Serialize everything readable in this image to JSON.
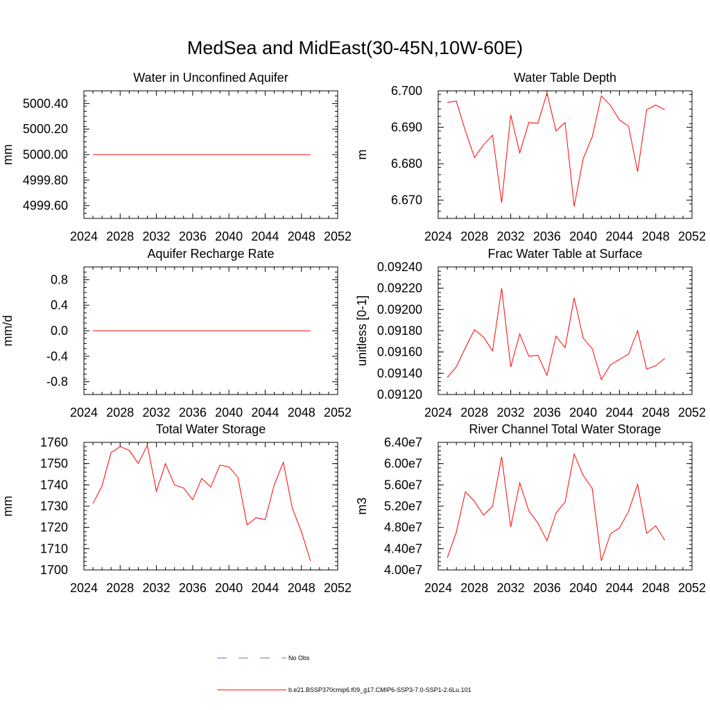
{
  "figure": {
    "title": "MedSea and MidEast(30-45N,10W-60E)",
    "series_color": "#ff0000",
    "obs_color": "#7b6fb8"
  },
  "legend": {
    "obs_label": "No Obs",
    "model_label": "b.e21.BSSP370cmip6.f09_g17.CMIP6-SSP3-7.0-SSP1-2.6Lu.101"
  },
  "chart_data": [
    {
      "type": "line",
      "title": "Water in Unconfined Aquifer",
      "ylabel": "mm",
      "xlim": [
        2024,
        2052
      ],
      "ylim": [
        4999.5,
        5000.5
      ],
      "xticks": [
        "2024",
        "2028",
        "2032",
        "2036",
        "2040",
        "2044",
        "2048",
        "2052"
      ],
      "yticks": [
        {
          "v": 4999.6,
          "label": "4999.60"
        },
        {
          "v": 4999.8,
          "label": "4999.80"
        },
        {
          "v": 5000.0,
          "label": "5000.00"
        },
        {
          "v": 5000.2,
          "label": "5000.20"
        },
        {
          "v": 5000.4,
          "label": "5000.40"
        }
      ],
      "x": [
        2025,
        2026,
        2027,
        2028,
        2029,
        2030,
        2031,
        2032,
        2033,
        2034,
        2035,
        2036,
        2037,
        2038,
        2039,
        2040,
        2041,
        2042,
        2043,
        2044,
        2045,
        2046,
        2047,
        2048,
        2049
      ],
      "y": [
        5000,
        5000,
        5000,
        5000,
        5000,
        5000,
        5000,
        5000,
        5000,
        5000,
        5000,
        5000,
        5000,
        5000,
        5000,
        5000,
        5000,
        5000,
        5000,
        5000,
        5000,
        5000,
        5000,
        5000,
        5000
      ]
    },
    {
      "type": "line",
      "title": "Water Table Depth",
      "ylabel": "m",
      "xlim": [
        2024,
        2052
      ],
      "ylim": [
        6.665,
        6.7
      ],
      "xticks": [
        "2024",
        "2028",
        "2032",
        "2036",
        "2040",
        "2044",
        "2048",
        "2052"
      ],
      "yticks": [
        {
          "v": 6.67,
          "label": "6.670"
        },
        {
          "v": 6.68,
          "label": "6.680"
        },
        {
          "v": 6.69,
          "label": "6.690"
        },
        {
          "v": 6.7,
          "label": "6.700"
        }
      ],
      "x": [
        2025,
        2026,
        2027,
        2028,
        2029,
        2030,
        2031,
        2032,
        2033,
        2034,
        2035,
        2036,
        2037,
        2038,
        2039,
        2040,
        2041,
        2042,
        2043,
        2044,
        2045,
        2046,
        2047,
        2048,
        2049
      ],
      "y": [
        6.6968,
        6.6972,
        6.689,
        6.6817,
        6.6852,
        6.6878,
        6.6693,
        6.6934,
        6.683,
        6.6913,
        6.6911,
        6.6994,
        6.689,
        6.6913,
        6.6683,
        6.6814,
        6.6874,
        6.6986,
        6.696,
        6.692,
        6.6903,
        6.6778,
        6.6948,
        6.6961,
        6.6948
      ]
    },
    {
      "type": "line",
      "title": "Aquifer Recharge Rate",
      "ylabel": "mm/d",
      "xlim": [
        2024,
        2052
      ],
      "ylim": [
        -1.0,
        1.0
      ],
      "xticks": [
        "2024",
        "2028",
        "2032",
        "2036",
        "2040",
        "2044",
        "2048",
        "2052"
      ],
      "yticks": [
        {
          "v": -0.8,
          "label": "-0.8"
        },
        {
          "v": -0.4,
          "label": "-0.4"
        },
        {
          "v": 0.0,
          "label": "0.0"
        },
        {
          "v": 0.4,
          "label": "0.4"
        },
        {
          "v": 0.8,
          "label": "0.8"
        }
      ],
      "x": [
        2025,
        2026,
        2027,
        2028,
        2029,
        2030,
        2031,
        2032,
        2033,
        2034,
        2035,
        2036,
        2037,
        2038,
        2039,
        2040,
        2041,
        2042,
        2043,
        2044,
        2045,
        2046,
        2047,
        2048,
        2049
      ],
      "y": [
        0,
        0,
        0,
        0,
        0,
        0,
        0,
        0,
        0,
        0,
        0,
        0,
        0,
        0,
        0,
        0,
        0,
        0,
        0,
        0,
        0,
        0,
        0,
        0,
        0
      ]
    },
    {
      "type": "line",
      "title": "Frac Water Table at Surface",
      "ylabel": "unitless [0-1]",
      "xlim": [
        2024,
        2052
      ],
      "ylim": [
        0.0912,
        0.0924
      ],
      "xticks": [
        "2024",
        "2028",
        "2032",
        "2036",
        "2040",
        "2044",
        "2048",
        "2052"
      ],
      "yticks": [
        {
          "v": 0.0912,
          "label": "0.09120"
        },
        {
          "v": 0.0914,
          "label": "0.09140"
        },
        {
          "v": 0.0916,
          "label": "0.09160"
        },
        {
          "v": 0.0918,
          "label": "0.09180"
        },
        {
          "v": 0.092,
          "label": "0.09200"
        },
        {
          "v": 0.0922,
          "label": "0.09220"
        },
        {
          "v": 0.0924,
          "label": "0.09240"
        }
      ],
      "x": [
        2025,
        2026,
        2027,
        2028,
        2029,
        2030,
        2031,
        2032,
        2033,
        2034,
        2035,
        2036,
        2037,
        2038,
        2039,
        2040,
        2041,
        2042,
        2043,
        2044,
        2045,
        2046,
        2047,
        2048,
        2049
      ],
      "y": [
        0.09136,
        0.09146,
        0.09164,
        0.09181,
        0.09174,
        0.09161,
        0.0922,
        0.09146,
        0.09177,
        0.09156,
        0.09157,
        0.09138,
        0.09175,
        0.09164,
        0.09211,
        0.09173,
        0.09163,
        0.09134,
        0.09148,
        0.09153,
        0.09158,
        0.0918,
        0.09144,
        0.09147,
        0.09154
      ]
    },
    {
      "type": "line",
      "title": "Total Water Storage",
      "ylabel": "mm",
      "xlim": [
        2024,
        2052
      ],
      "ylim": [
        1700,
        1760
      ],
      "xticks": [
        "2024",
        "2028",
        "2032",
        "2036",
        "2040",
        "2044",
        "2048",
        "2052"
      ],
      "yticks": [
        {
          "v": 1700,
          "label": "1700"
        },
        {
          "v": 1710,
          "label": "1710"
        },
        {
          "v": 1720,
          "label": "1720"
        },
        {
          "v": 1730,
          "label": "1730"
        },
        {
          "v": 1740,
          "label": "1740"
        },
        {
          "v": 1750,
          "label": "1750"
        },
        {
          "v": 1760,
          "label": "1760"
        }
      ],
      "x": [
        2025,
        2026,
        2027,
        2028,
        2029,
        2030,
        2031,
        2032,
        2033,
        2034,
        2035,
        2036,
        2037,
        2038,
        2039,
        2040,
        2041,
        2042,
        2043,
        2044,
        2045,
        2046,
        2047,
        2048,
        2049
      ],
      "y": [
        1731.2,
        1739.5,
        1755.2,
        1758.0,
        1756.2,
        1750.1,
        1758.6,
        1737.0,
        1750.0,
        1740.0,
        1738.5,
        1733.0,
        1743.0,
        1739.0,
        1749.3,
        1748.5,
        1743.5,
        1721.2,
        1724.6,
        1723.6,
        1740.0,
        1750.6,
        1729.0,
        1718.0,
        1704.2
      ]
    },
    {
      "type": "line",
      "title": "River Channel Total Water Storage",
      "ylabel": "m3",
      "xlim": [
        2024,
        2052
      ],
      "ylim": [
        40000000,
        64000000
      ],
      "xticks": [
        "2024",
        "2028",
        "2032",
        "2036",
        "2040",
        "2044",
        "2048",
        "2052"
      ],
      "yticks": [
        {
          "v": 40000000,
          "label": "4.00e7"
        },
        {
          "v": 44000000,
          "label": "4.40e7"
        },
        {
          "v": 48000000,
          "label": "4.80e7"
        },
        {
          "v": 52000000,
          "label": "5.20e7"
        },
        {
          "v": 56000000,
          "label": "5.60e7"
        },
        {
          "v": 60000000,
          "label": "6.00e7"
        },
        {
          "v": 64000000,
          "label": "6.40e7"
        }
      ],
      "x": [
        2025,
        2026,
        2027,
        2028,
        2029,
        2030,
        2031,
        2032,
        2033,
        2034,
        2035,
        2036,
        2037,
        2038,
        2039,
        2040,
        2041,
        2042,
        2043,
        2044,
        2045,
        2046,
        2047,
        2048,
        2049
      ],
      "y": [
        42300000,
        47100000,
        54700000,
        52900000,
        50300000,
        52000000,
        61300000,
        48100000,
        56400000,
        51100000,
        48800000,
        45500000,
        50700000,
        52800000,
        61800000,
        57800000,
        55300000,
        41700000,
        46800000,
        47900000,
        51000000,
        56100000,
        46900000,
        48300000,
        45600000
      ]
    }
  ]
}
